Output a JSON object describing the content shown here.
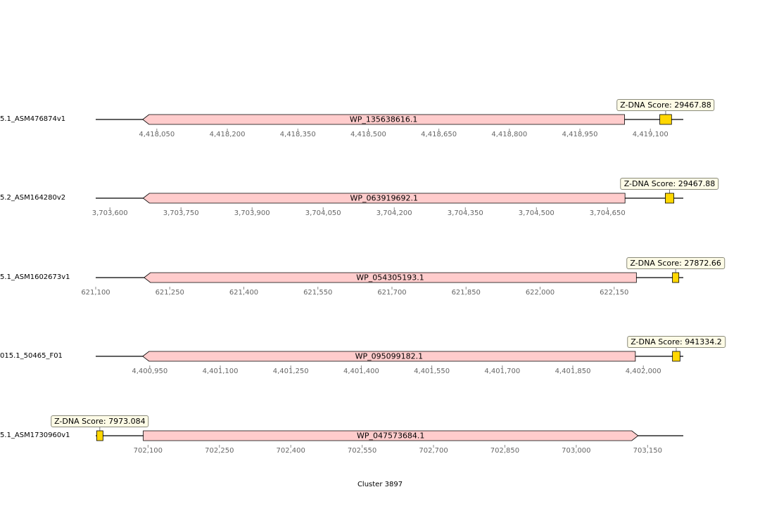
{
  "figure": {
    "caption": "Cluster 3897"
  },
  "colors": {
    "gene_fill": "#ffcccc",
    "zdna_fill": "#ffd700",
    "score_box_fill": "#fdfbe6",
    "tick_label": "#666666"
  },
  "tracks": [
    {
      "label": "5.1_ASM476874v1",
      "range": [
        4417920,
        4419170
      ],
      "ticks": [
        "4,418,050",
        "4,418,200",
        "4,418,350",
        "4,418,500",
        "4,418,650",
        "4,418,800",
        "4,418,950",
        "4,419,100"
      ],
      "tick_values": [
        4418050,
        4418200,
        4418350,
        4418500,
        4418650,
        4418800,
        4418950,
        4419100
      ],
      "gene": {
        "name": "WP_135638616.1",
        "start": 4418020,
        "end": 4419045,
        "strand": "-"
      },
      "zdna": {
        "start": 4419120,
        "end": 4419145,
        "score": "Z-DNA Score: 29467.88"
      }
    },
    {
      "label": "5.2_ASM164280v2",
      "range": [
        3703570,
        3704810
      ],
      "ticks": [
        "3,703,600",
        "3,703,750",
        "3,703,900",
        "3,704,050",
        "3,704,200",
        "3,704,350",
        "3,704,500",
        "3,704,650"
      ],
      "tick_values": [
        3703600,
        3703750,
        3703900,
        3704050,
        3704200,
        3704350,
        3704500,
        3704650
      ],
      "gene": {
        "name": "WP_063919692.1",
        "start": 3703670,
        "end": 3704687,
        "strand": "-"
      },
      "zdna": {
        "start": 3704772,
        "end": 3704790,
        "score": "Z-DNA Score: 29467.88"
      }
    },
    {
      "label": "5.1_ASM1602673v1",
      "range": [
        621100,
        622290
      ],
      "ticks": [
        "621,100",
        "621,250",
        "621,400",
        "621,550",
        "621,700",
        "621,850",
        "622,000",
        "622,150"
      ],
      "tick_values": [
        621100,
        621250,
        621400,
        621550,
        621700,
        621850,
        622000,
        622150
      ],
      "gene": {
        "name": "WP_054305193.1",
        "start": 621198,
        "end": 622195,
        "strand": "-"
      },
      "zdna": {
        "start": 622268,
        "end": 622281,
        "score": "Z-DNA Score: 27872.66"
      }
    },
    {
      "label": "015.1_50465_F01",
      "range": [
        4400835,
        4402085
      ],
      "ticks": [
        "4,400,950",
        "4,401,100",
        "4,401,250",
        "4,401,400",
        "4,401,550",
        "4,401,700",
        "4,401,850",
        "4,402,000"
      ],
      "tick_values": [
        4400950,
        4401100,
        4401250,
        4401400,
        4401550,
        4401700,
        4401850,
        4402000
      ],
      "gene": {
        "name": "WP_095099182.1",
        "start": 4400935,
        "end": 4401983,
        "strand": "-"
      },
      "zdna": {
        "start": 4402062,
        "end": 4402078,
        "score": "Z-DNA Score: 941334.2"
      }
    },
    {
      "label": "5.1_ASM1730960v1",
      "range": [
        701990,
        703225
      ],
      "ticks": [
        "702,100",
        "702,250",
        "702,400",
        "702,550",
        "702,700",
        "702,850",
        "703,000",
        "703,150"
      ],
      "tick_values": [
        702100,
        702250,
        702400,
        702550,
        702700,
        702850,
        703000,
        703150
      ],
      "gene": {
        "name": "WP_047573684.1",
        "start": 702090,
        "end": 703130,
        "strand": "+"
      },
      "zdna": {
        "start": 701992,
        "end": 702005,
        "score": "Z-DNA Score: 7973.084"
      }
    }
  ]
}
